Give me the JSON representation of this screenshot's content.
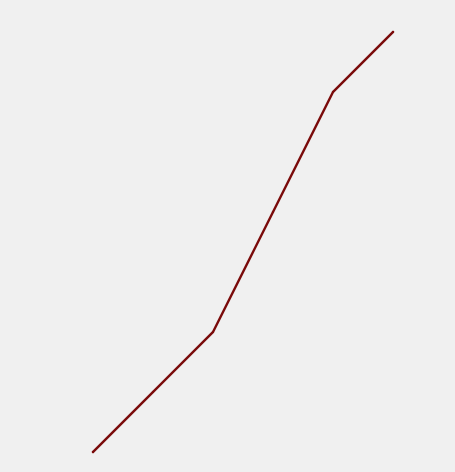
{
  "colors": {
    "background": "#f0f0f0",
    "line": "#7a0a0a"
  },
  "chart_data": {
    "type": "line",
    "x": [
      1,
      2,
      3,
      4,
      5,
      6
    ],
    "series": [
      {
        "values": [
          1,
          2,
          3,
          5,
          7,
          8
        ],
        "color": "#7a0a0a"
      }
    ],
    "xlim": [
      0,
      7
    ],
    "ylim": [
      0.5,
      8.5
    ],
    "grid": false,
    "axes_visible": false,
    "legend": "none",
    "markers": false
  }
}
